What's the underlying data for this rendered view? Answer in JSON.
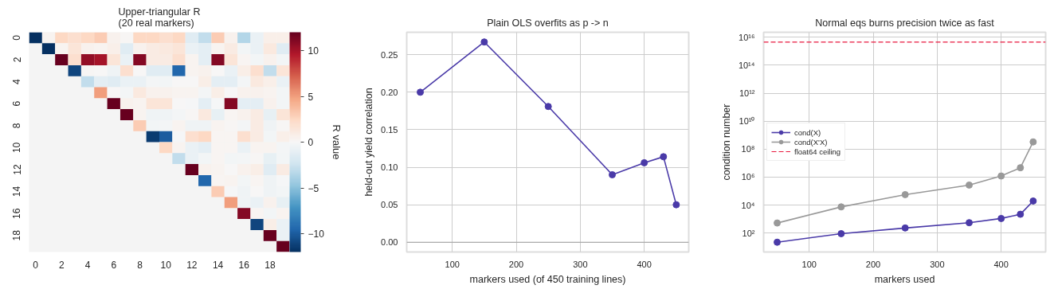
{
  "chart_data": [
    {
      "type": "heatmap",
      "title": "Upper-triangular R\n(20 real markers)",
      "clabel": "R value",
      "categories": [
        "0",
        null,
        "2",
        null,
        "4",
        null,
        "6",
        null,
        "8",
        null,
        "10",
        null,
        "12",
        null,
        "14",
        null,
        "16",
        null,
        "18",
        null
      ],
      "y_categories": [
        "0",
        null,
        "2",
        null,
        "4",
        null,
        "6",
        null,
        "8",
        null,
        "10",
        null,
        "12",
        null,
        "14",
        null,
        "16",
        null,
        "18",
        null
      ],
      "cells": [
        [
          -12,
          0.3,
          2.5,
          2,
          2.5,
          3,
          0.5,
          0.1,
          2.5,
          2.5,
          2,
          2.5,
          -1.5,
          -3,
          3,
          0.5,
          -3.5,
          -0.8,
          0.7,
          0.7
        ],
        [
          null,
          -12,
          0.3,
          1.5,
          0.5,
          0.3,
          0.7,
          -1.5,
          0.5,
          1,
          1.2,
          1.5,
          -0.8,
          -1.2,
          0.3,
          1,
          -0.3,
          -0.8,
          1.2,
          -1.5
        ],
        [
          null,
          null,
          12,
          2,
          10.5,
          10,
          1.5,
          -0.8,
          11,
          1,
          1,
          2,
          0.3,
          -1.2,
          11,
          1.5,
          0.2,
          -0.3,
          0.5,
          -0.3
        ],
        [
          null,
          null,
          null,
          -11,
          0.1,
          0,
          -0.5,
          2,
          0,
          -1.5,
          -1.5,
          -9.5,
          0.3,
          0.5,
          0,
          -0.8,
          0.8,
          2,
          -3,
          1.5
        ],
        [
          null,
          null,
          null,
          null,
          -3,
          -1.2,
          -1.5,
          -0.8,
          -0.8,
          -0.2,
          -0.3,
          0,
          0,
          0.8,
          -1.2,
          -1.2,
          -0.2,
          1.2,
          0.7,
          -0.8
        ],
        [
          null,
          null,
          null,
          null,
          null,
          5,
          0,
          -0.2,
          1.2,
          0.5,
          0.5,
          0.3,
          0.3,
          -0.2,
          0.8,
          0,
          0.5,
          0.5,
          0.3,
          -0.3
        ],
        [
          null,
          null,
          null,
          null,
          null,
          null,
          12,
          0.5,
          0.3,
          1.5,
          1.5,
          0,
          -0.1,
          -1.2,
          -0.1,
          11,
          -1.2,
          -1.2,
          0.5,
          -0.3
        ],
        [
          null,
          null,
          null,
          null,
          null,
          null,
          null,
          12,
          0.3,
          -0.5,
          -0.5,
          -0.2,
          0.1,
          1.2,
          -1,
          0.2,
          0.5,
          1,
          -1,
          1.5
        ],
        [
          null,
          null,
          null,
          null,
          null,
          null,
          null,
          null,
          3,
          -0.3,
          -0.2,
          0.3,
          -0.5,
          -0.5,
          0.3,
          0.1,
          -0.2,
          1,
          -0.5,
          0.1
        ],
        [
          null,
          null,
          null,
          null,
          null,
          null,
          null,
          null,
          null,
          -11.5,
          -10,
          -0.1,
          2,
          2.5,
          0.2,
          0.2,
          2,
          1,
          -0.3,
          0.7
        ],
        [
          null,
          null,
          null,
          null,
          null,
          null,
          null,
          null,
          null,
          null,
          2.5,
          0.3,
          -0.8,
          -1.2,
          0.2,
          0.2,
          -0.8,
          0.3,
          0.3,
          -0.2
        ],
        [
          null,
          null,
          null,
          null,
          null,
          null,
          null,
          null,
          null,
          null,
          null,
          -3,
          -0.8,
          -0.3,
          0.2,
          -0.3,
          -0.2,
          0.1,
          -1,
          -0.3
        ],
        [
          null,
          null,
          null,
          null,
          null,
          null,
          null,
          null,
          null,
          null,
          null,
          null,
          12,
          0.5,
          0.3,
          0,
          0.5,
          0.8,
          -1.5,
          1
        ],
        [
          null,
          null,
          null,
          null,
          null,
          null,
          null,
          null,
          null,
          null,
          null,
          null,
          null,
          -9.5,
          0.2,
          0.3,
          -0.3,
          0.2,
          -0.5,
          -0.1
        ],
        [
          null,
          null,
          null,
          null,
          null,
          null,
          null,
          null,
          null,
          null,
          null,
          null,
          null,
          null,
          3,
          -0.1,
          -0.5,
          0,
          -0.5,
          -0.3
        ],
        [
          null,
          null,
          null,
          null,
          null,
          null,
          null,
          null,
          null,
          null,
          null,
          null,
          null,
          null,
          null,
          5,
          -0.5,
          -0.8,
          0.5,
          -1
        ],
        [
          null,
          null,
          null,
          null,
          null,
          null,
          null,
          null,
          null,
          null,
          null,
          null,
          null,
          null,
          null,
          null,
          11,
          0.2,
          -0.3,
          0.3
        ],
        [
          null,
          null,
          null,
          null,
          null,
          null,
          null,
          null,
          null,
          null,
          null,
          null,
          null,
          null,
          null,
          null,
          null,
          -11,
          0.8,
          -0.8
        ],
        [
          null,
          null,
          null,
          null,
          null,
          null,
          null,
          null,
          null,
          null,
          null,
          null,
          null,
          null,
          null,
          null,
          null,
          null,
          12,
          -0.8
        ],
        [
          null,
          null,
          null,
          null,
          null,
          null,
          null,
          null,
          null,
          null,
          null,
          null,
          null,
          null,
          null,
          null,
          null,
          null,
          null,
          12
        ]
      ],
      "clim": [
        -12,
        12
      ],
      "cticks": [
        {
          "value": -10,
          "label": "−10"
        },
        {
          "value": -5,
          "label": "−5"
        },
        0,
        5,
        10
      ]
    },
    {
      "type": "line",
      "title": "Plain OLS overfits as p -> n",
      "xlabel": "markers used (of 450 training lines)",
      "ylabel": "held-out yield correlation",
      "x": [
        50,
        150,
        250,
        350,
        400,
        430,
        450
      ],
      "series": [
        {
          "color": "#4a3aa8",
          "values": [
            0.2,
            0.267,
            0.181,
            0.09,
            0.106,
            0.114,
            0.05
          ]
        }
      ],
      "marker": "circle",
      "grid": true,
      "xlim": [
        28.8,
        469.5
      ],
      "xticks": [
        100,
        200,
        300,
        400
      ],
      "ylim": [
        -0.013,
        0.28
      ],
      "yticks": [
        {
          "value": 0,
          "label": "0.00"
        },
        {
          "value": 0.05,
          "label": "0.05"
        },
        {
          "value": 0.1,
          "label": "0.10"
        },
        {
          "value": 0.15,
          "label": "0.15"
        },
        {
          "value": 0.2,
          "label": "0.20"
        },
        {
          "value": 0.25,
          "label": "0.25"
        }
      ],
      "ref_lines": [
        {
          "axis": "y",
          "value": 0,
          "color": "#a0a0a0"
        }
      ]
    },
    {
      "type": "line",
      "title": "Normal eqs burns precision twice as fast",
      "xlabel": "markers used",
      "ylabel": "condition number",
      "x": [
        50,
        150,
        250,
        350,
        400,
        430,
        450
      ],
      "series": [
        {
          "name": "cond(X)",
          "color": "#4a3aa8",
          "values": [
            22,
            90,
            230,
            550,
            1100,
            2200,
            19500
          ]
        },
        {
          "name": "cond(X'X)",
          "color": "#999999",
          "values": [
            520,
            7400,
            56000,
            270000,
            1200000,
            4700000,
            330000000
          ]
        }
      ],
      "marker": "circle",
      "grid": true,
      "log": true,
      "legend": "left",
      "xlim": [
        28.8,
        469.5
      ],
      "xticks": [
        100,
        200,
        300,
        400
      ],
      "ylim": [
        4.4,
        23000000000000000
      ],
      "yticks": [
        {
          "value": 100,
          "label": "10²"
        },
        {
          "value": 10000,
          "label": "10⁴"
        },
        {
          "value": 1000000,
          "label": "10⁶"
        },
        {
          "value": 100000000,
          "label": "10⁸"
        },
        {
          "value": 10000000000,
          "label": "10¹⁰"
        },
        {
          "value": 1000000000000,
          "label": "10¹²"
        },
        {
          "value": 100000000000000,
          "label": "10¹⁴"
        },
        {
          "value": 10000000000000000,
          "label": "10¹⁶"
        }
      ],
      "ref_lines": [
        {
          "axis": "y",
          "value": 4500000000000000,
          "label": "float64 ceiling",
          "color": "#e8173c",
          "line_style": "dashed"
        }
      ]
    }
  ]
}
